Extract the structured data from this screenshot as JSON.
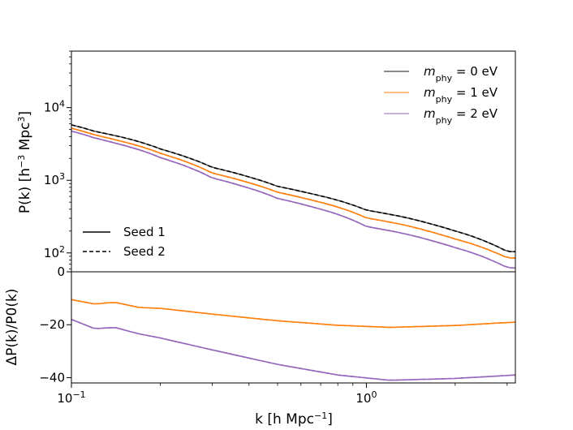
{
  "chart_data": [
    {
      "type": "line",
      "panel": "top",
      "yscale": "log",
      "xscale": "log",
      "xlim": [
        0.1,
        3.2
      ],
      "ylim": [
        55,
        60000
      ],
      "ylabel_main": "P(k) [h",
      "ylabel_exp1": "−3",
      "ylabel_mid": " Mpc",
      "ylabel_exp2": "3",
      "ylabel_end": "]",
      "yticks": [
        {
          "value": 100,
          "base": "10",
          "exp": "2"
        },
        {
          "value": 1000,
          "base": "10",
          "exp": "3"
        },
        {
          "value": 10000,
          "base": "10",
          "exp": "4"
        }
      ],
      "x": [
        0.1,
        0.12,
        0.15,
        0.2,
        0.3,
        0.5,
        1.0,
        2.0,
        3.0,
        3.2
      ],
      "series": [
        {
          "name": "m_phy = 0 eV",
          "color": "#555555",
          "values": [
            5800,
            4700,
            3900,
            2700,
            1500,
            820,
            390,
            200,
            105,
            104
          ]
        },
        {
          "name": "m_phy = 1 eV",
          "color": "#ff7f0e",
          "values": [
            5200,
            4200,
            3400,
            2350,
            1250,
            680,
            305,
            155,
            86,
            85
          ]
        },
        {
          "name": "m_phy = 2 eV",
          "color": "#9467bd",
          "values": [
            4750,
            3800,
            3050,
            2050,
            1070,
            560,
            232,
            118,
            63,
            62
          ]
        }
      ],
      "legend_colors": [
        {
          "label_main": "m",
          "label_sub": "phy",
          "label_rest": " = 0 eV",
          "color": "#8c8c8c"
        },
        {
          "label_main": "m",
          "label_sub": "phy",
          "label_rest": " = 1 eV",
          "color": "#ffbf86"
        },
        {
          "label_main": "m",
          "label_sub": "phy",
          "label_rest": " = 2 eV",
          "color": "#c9b3de"
        }
      ],
      "legend_styles": [
        {
          "label": "Seed 1",
          "style": "solid"
        },
        {
          "label": "Seed 2",
          "style": "dashed"
        }
      ]
    },
    {
      "type": "line",
      "panel": "bottom",
      "xscale": "log",
      "xlim": [
        0.1,
        3.2
      ],
      "ylim": [
        -42,
        0
      ],
      "ylabel": "ΔP(k)/P0(k)",
      "yticks": [
        {
          "value": 0,
          "label": "0"
        },
        {
          "value": -20,
          "label": "−20"
        },
        {
          "value": -40,
          "label": "−40"
        }
      ],
      "x": [
        0.1,
        0.12,
        0.14,
        0.17,
        0.2,
        0.3,
        0.5,
        0.8,
        1.2,
        2.0,
        3.2
      ],
      "series": [
        {
          "name": "m_phy = 1 eV",
          "color": "#ff7f0e",
          "values": [
            -10.5,
            -12.2,
            -11.5,
            -13.5,
            -13.8,
            -16.0,
            -18.5,
            -20.2,
            -21.0,
            -20.3,
            -19.0
          ]
        },
        {
          "name": "m_phy = 2 eV",
          "color": "#9467bd",
          "values": [
            -18.0,
            -21.5,
            -21.0,
            -23.5,
            -25.0,
            -29.5,
            -35.0,
            -39.0,
            -41.0,
            -40.3,
            -39.0
          ]
        }
      ],
      "xlabel_main": "k [h Mpc",
      "xlabel_exp": "−1",
      "xlabel_end": "]",
      "xticks": [
        {
          "value": 0.1,
          "base": "10",
          "exp": "−1"
        },
        {
          "value": 1.0,
          "base": "10",
          "exp": "0"
        }
      ]
    }
  ]
}
